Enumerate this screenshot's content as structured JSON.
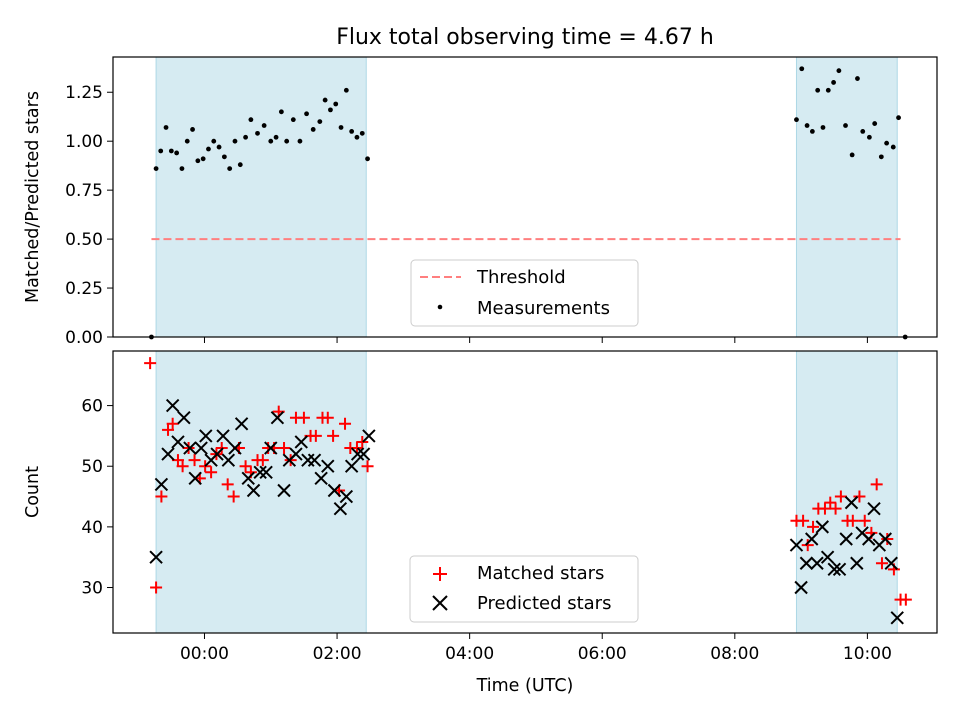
{
  "chart_data": [
    {
      "type": "scatter",
      "title": "Flux total observing time = 4.67 h",
      "xlabel": "",
      "ylabel": "Matched/Predicted stars",
      "x_unit": "hours (UTC, negative = before 00:00)",
      "xlim": [
        -1.38,
        11.05
      ],
      "ylim": [
        0,
        1.43
      ],
      "yticks": [
        0.0,
        0.25,
        0.5,
        0.75,
        1.0,
        1.25
      ],
      "ytick_labels": [
        "0.00",
        "0.25",
        "0.50",
        "0.75",
        "1.00",
        "1.25"
      ],
      "xticks": [
        0,
        2,
        4,
        6,
        8,
        10
      ],
      "xtick_labels": [],
      "observing_spans": [
        [
          -0.73,
          2.44
        ],
        [
          8.93,
          10.45
        ]
      ],
      "threshold": {
        "name": "Threshold",
        "value": 0.5,
        "x": [
          -0.8,
          10.5
        ],
        "color": "#ff7f7f"
      },
      "series": [
        {
          "name": "Measurements",
          "color": "#000000",
          "marker": "dot",
          "points": [
            [
              -0.8,
              0.0
            ],
            [
              -0.73,
              0.86
            ],
            [
              -0.66,
              0.95
            ],
            [
              -0.58,
              1.07
            ],
            [
              -0.5,
              0.95
            ],
            [
              -0.42,
              0.94
            ],
            [
              -0.34,
              0.86
            ],
            [
              -0.26,
              1.0
            ],
            [
              -0.18,
              1.06
            ],
            [
              -0.1,
              0.9
            ],
            [
              -0.02,
              0.91
            ],
            [
              0.06,
              0.96
            ],
            [
              0.14,
              1.0
            ],
            [
              0.22,
              0.97
            ],
            [
              0.3,
              0.92
            ],
            [
              0.38,
              0.86
            ],
            [
              0.46,
              1.0
            ],
            [
              0.54,
              0.88
            ],
            [
              0.62,
              1.02
            ],
            [
              0.7,
              1.11
            ],
            [
              0.8,
              1.04
            ],
            [
              0.9,
              1.08
            ],
            [
              1.0,
              1.0
            ],
            [
              1.08,
              1.02
            ],
            [
              1.16,
              1.15
            ],
            [
              1.24,
              1.0
            ],
            [
              1.34,
              1.11
            ],
            [
              1.44,
              1.0
            ],
            [
              1.54,
              1.14
            ],
            [
              1.64,
              1.06
            ],
            [
              1.74,
              1.1
            ],
            [
              1.82,
              1.21
            ],
            [
              1.9,
              1.16
            ],
            [
              1.98,
              1.19
            ],
            [
              2.06,
              1.07
            ],
            [
              2.14,
              1.26
            ],
            [
              2.22,
              1.05
            ],
            [
              2.3,
              1.02
            ],
            [
              2.38,
              1.04
            ],
            [
              2.46,
              0.91
            ],
            [
              8.93,
              1.11
            ],
            [
              9.01,
              1.37
            ],
            [
              9.09,
              1.08
            ],
            [
              9.17,
              1.05
            ],
            [
              9.25,
              1.26
            ],
            [
              9.33,
              1.07
            ],
            [
              9.41,
              1.26
            ],
            [
              9.49,
              1.3
            ],
            [
              9.57,
              1.36
            ],
            [
              9.67,
              1.08
            ],
            [
              9.77,
              0.93
            ],
            [
              9.85,
              1.32
            ],
            [
              9.93,
              1.05
            ],
            [
              10.03,
              1.02
            ],
            [
              10.11,
              1.09
            ],
            [
              10.21,
              0.92
            ],
            [
              10.29,
              0.99
            ],
            [
              10.39,
              0.97
            ],
            [
              10.47,
              1.12
            ],
            [
              10.57,
              0.0
            ]
          ]
        }
      ],
      "legend": {
        "placement": "lower center",
        "entries": [
          "Threshold",
          "Measurements"
        ]
      }
    },
    {
      "type": "scatter",
      "title": "",
      "xlabel": "Time (UTC)",
      "ylabel": "Count",
      "x_unit": "hours (UTC, negative = before 00:00)",
      "xlim": [
        -1.38,
        11.05
      ],
      "ylim": [
        22.5,
        69
      ],
      "yticks": [
        30,
        40,
        50,
        60
      ],
      "ytick_labels": [
        "30",
        "40",
        "50",
        "60"
      ],
      "xticks": [
        0,
        2,
        4,
        6,
        8,
        10
      ],
      "xtick_labels": [
        "00:00",
        "02:00",
        "04:00",
        "06:00",
        "08:00",
        "10:00"
      ],
      "observing_spans": [
        [
          -0.73,
          2.44
        ],
        [
          8.93,
          10.45
        ]
      ],
      "series": [
        {
          "name": "Matched stars",
          "color": "#ff0000",
          "marker": "plus",
          "points": [
            [
              -0.82,
              67
            ],
            [
              -0.73,
              30
            ],
            [
              -0.65,
              45
            ],
            [
              -0.55,
              56
            ],
            [
              -0.48,
              57
            ],
            [
              -0.4,
              51
            ],
            [
              -0.33,
              50
            ],
            [
              -0.24,
              53
            ],
            [
              -0.15,
              51
            ],
            [
              -0.07,
              48
            ],
            [
              0.01,
              50
            ],
            [
              0.1,
              49
            ],
            [
              0.18,
              52
            ],
            [
              0.26,
              53
            ],
            [
              0.35,
              47
            ],
            [
              0.44,
              45
            ],
            [
              0.52,
              53
            ],
            [
              0.62,
              50
            ],
            [
              0.7,
              49
            ],
            [
              0.8,
              51
            ],
            [
              0.88,
              51
            ],
            [
              0.96,
              53
            ],
            [
              1.05,
              53
            ],
            [
              1.12,
              59
            ],
            [
              1.2,
              53
            ],
            [
              1.3,
              51
            ],
            [
              1.38,
              58
            ],
            [
              1.5,
              58
            ],
            [
              1.6,
              55
            ],
            [
              1.68,
              55
            ],
            [
              1.78,
              58
            ],
            [
              1.86,
              58
            ],
            [
              1.94,
              55
            ],
            [
              2.03,
              46
            ],
            [
              2.12,
              57
            ],
            [
              2.2,
              53
            ],
            [
              2.3,
              53
            ],
            [
              2.38,
              54
            ],
            [
              2.46,
              50
            ],
            [
              8.93,
              41
            ],
            [
              9.03,
              41
            ],
            [
              9.1,
              37
            ],
            [
              9.18,
              40
            ],
            [
              9.26,
              43
            ],
            [
              9.36,
              43
            ],
            [
              9.44,
              44
            ],
            [
              9.52,
              43
            ],
            [
              9.6,
              45
            ],
            [
              9.7,
              41
            ],
            [
              9.78,
              41
            ],
            [
              9.88,
              45
            ],
            [
              9.96,
              41
            ],
            [
              10.06,
              39
            ],
            [
              10.14,
              47
            ],
            [
              10.22,
              34
            ],
            [
              10.3,
              38
            ],
            [
              10.4,
              33
            ],
            [
              10.5,
              28
            ],
            [
              10.58,
              28
            ]
          ]
        },
        {
          "name": "Predicted stars",
          "color": "#000000",
          "marker": "x",
          "points": [
            [
              -0.73,
              35
            ],
            [
              -0.65,
              47
            ],
            [
              -0.55,
              52
            ],
            [
              -0.48,
              60
            ],
            [
              -0.4,
              54
            ],
            [
              -0.31,
              58
            ],
            [
              -0.22,
              53
            ],
            [
              -0.14,
              48
            ],
            [
              -0.05,
              53
            ],
            [
              0.02,
              55
            ],
            [
              0.1,
              51
            ],
            [
              0.19,
              52
            ],
            [
              0.28,
              55
            ],
            [
              0.36,
              51
            ],
            [
              0.46,
              53
            ],
            [
              0.56,
              57
            ],
            [
              0.66,
              48
            ],
            [
              0.74,
              46
            ],
            [
              0.84,
              49
            ],
            [
              0.93,
              49
            ],
            [
              1.0,
              53
            ],
            [
              1.1,
              58
            ],
            [
              1.2,
              46
            ],
            [
              1.28,
              51
            ],
            [
              1.38,
              52
            ],
            [
              1.46,
              54
            ],
            [
              1.56,
              51
            ],
            [
              1.66,
              51
            ],
            [
              1.76,
              48
            ],
            [
              1.86,
              50
            ],
            [
              1.96,
              46
            ],
            [
              2.05,
              43
            ],
            [
              2.14,
              45
            ],
            [
              2.22,
              50
            ],
            [
              2.31,
              52
            ],
            [
              2.4,
              52
            ],
            [
              2.48,
              55
            ],
            [
              8.93,
              37
            ],
            [
              9.0,
              30
            ],
            [
              9.08,
              34
            ],
            [
              9.16,
              38
            ],
            [
              9.24,
              34
            ],
            [
              9.32,
              40
            ],
            [
              9.4,
              35
            ],
            [
              9.5,
              33
            ],
            [
              9.58,
              33
            ],
            [
              9.68,
              38
            ],
            [
              9.76,
              44
            ],
            [
              9.84,
              34
            ],
            [
              9.92,
              39
            ],
            [
              10.02,
              38
            ],
            [
              10.1,
              43
            ],
            [
              10.18,
              37
            ],
            [
              10.27,
              38
            ],
            [
              10.36,
              34
            ],
            [
              10.45,
              25
            ]
          ]
        }
      ],
      "legend": {
        "placement": "lower center",
        "entries": [
          "Matched stars",
          "Predicted stars"
        ]
      }
    }
  ]
}
